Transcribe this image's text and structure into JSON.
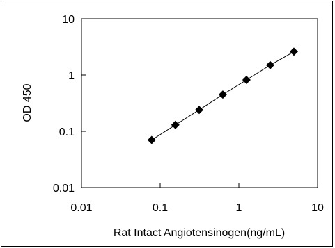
{
  "chart_data": {
    "type": "scatter",
    "title": "",
    "xlabel": "Rat Intact Angiotensinogen(ng/mL)",
    "ylabel": "OD 450",
    "x_scale": "log",
    "y_scale": "log",
    "xlim": [
      0.01,
      10
    ],
    "ylim": [
      0.01,
      10
    ],
    "x_ticks": [
      0.01,
      0.1,
      1,
      10
    ],
    "y_ticks": [
      0.01,
      0.1,
      1,
      10
    ],
    "x_tick_labels": [
      "0.01",
      "0.1",
      "1",
      "10"
    ],
    "y_tick_labels": [
      "0.01",
      "0.1",
      "1",
      "10"
    ],
    "grid": false,
    "legend": false,
    "marker": "diamond",
    "series_color": "#000000",
    "points": [
      {
        "x": 0.078,
        "y": 0.07
      },
      {
        "x": 0.156,
        "y": 0.13
      },
      {
        "x": 0.313,
        "y": 0.24
      },
      {
        "x": 0.625,
        "y": 0.45
      },
      {
        "x": 1.25,
        "y": 0.82
      },
      {
        "x": 2.5,
        "y": 1.5
      },
      {
        "x": 5,
        "y": 2.6
      }
    ]
  }
}
